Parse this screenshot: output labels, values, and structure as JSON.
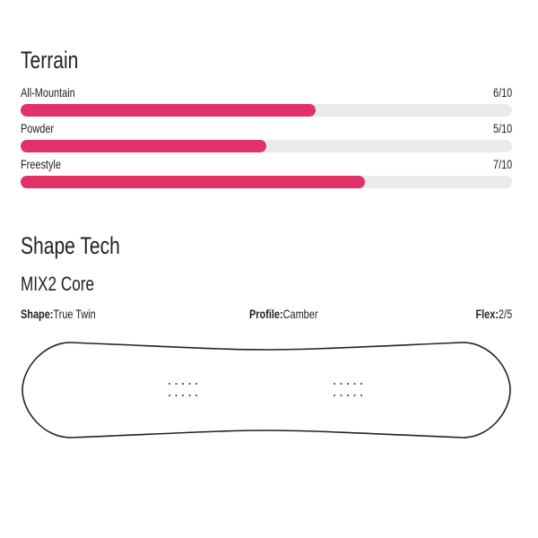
{
  "terrain": {
    "title": "Terrain",
    "accent_color": "#e23068",
    "track_color": "#e8eaeb",
    "items": [
      {
        "label": "All-Mountain",
        "value_text": "6/10",
        "value": 6,
        "max": 10
      },
      {
        "label": "Powder",
        "value_text": "5/10",
        "value": 5,
        "max": 10
      },
      {
        "label": "Freestyle",
        "value_text": "7/10",
        "value": 7,
        "max": 10
      }
    ]
  },
  "shape_tech": {
    "title": "Shape Tech",
    "core": "MIX2 Core",
    "specs": {
      "shape_label": "Shape:",
      "shape_value": "True Twin",
      "profile_label": "Profile:",
      "profile_value": "Camber",
      "flex_label": "Flex:",
      "flex_value": "2/5"
    },
    "board_image": "snowboard-outline-icon"
  }
}
